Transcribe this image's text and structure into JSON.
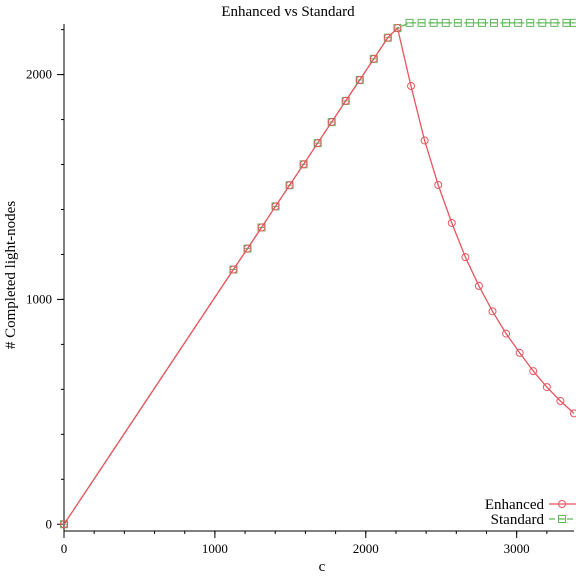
{
  "chart_data": {
    "type": "line",
    "title": "Enhanced vs Standard",
    "xlabel": "c",
    "ylabel": "# Completed light-nodes",
    "xlim": [
      0,
      3380
    ],
    "ylim": [
      -30,
      2225
    ],
    "x_ticks": [
      0,
      1000,
      2000,
      3000
    ],
    "x_tick_labels": [
      "0",
      "1000",
      "2000",
      "3000"
    ],
    "x_minor_step": 200,
    "y_ticks": [
      0,
      1000,
      2000
    ],
    "y_tick_labels": [
      "0",
      "1000",
      "2000"
    ],
    "y_minor_step": 200,
    "grid": false,
    "legend_position": "bottom-right",
    "series": [
      {
        "name": "Enhanced",
        "color": "#e8555f",
        "marker": "circle",
        "dashed": false,
        "x": [
          0,
          1123,
          1216,
          1309,
          1402,
          1495,
          1588,
          1681,
          1774,
          1867,
          1960,
          2053,
          2146,
          2210,
          2300,
          2390,
          2480,
          2570,
          2660,
          2750,
          2840,
          2930,
          3020,
          3110,
          3200,
          3290,
          3380
        ],
        "y": [
          0,
          1133,
          1226,
          1320,
          1414,
          1508,
          1601,
          1695,
          1789,
          1883,
          1976,
          2070,
          2164,
          2207,
          1949,
          1707,
          1509,
          1340,
          1188,
          1060,
          947,
          848,
          762,
          681,
          610,
          548,
          493
        ]
      },
      {
        "name": "Standard",
        "color": "#5fb85a",
        "marker": "square",
        "dashed": true,
        "x": [
          0,
          1123,
          1216,
          1309,
          1402,
          1495,
          1588,
          1681,
          1774,
          1867,
          1960,
          2053,
          2146,
          2210,
          2290,
          2370,
          2450,
          2530,
          2610,
          2690,
          2770,
          2850,
          2930,
          3010,
          3090,
          3170,
          3250,
          3330,
          3380
        ],
        "y": [
          0,
          1133,
          1226,
          1320,
          1414,
          1508,
          1601,
          1695,
          1789,
          1883,
          1976,
          2070,
          2164,
          2207,
          2230,
          2230,
          2230,
          2230,
          2230,
          2230,
          2230,
          2230,
          2230,
          2230,
          2230,
          2230,
          2230,
          2230,
          2230
        ]
      }
    ]
  }
}
